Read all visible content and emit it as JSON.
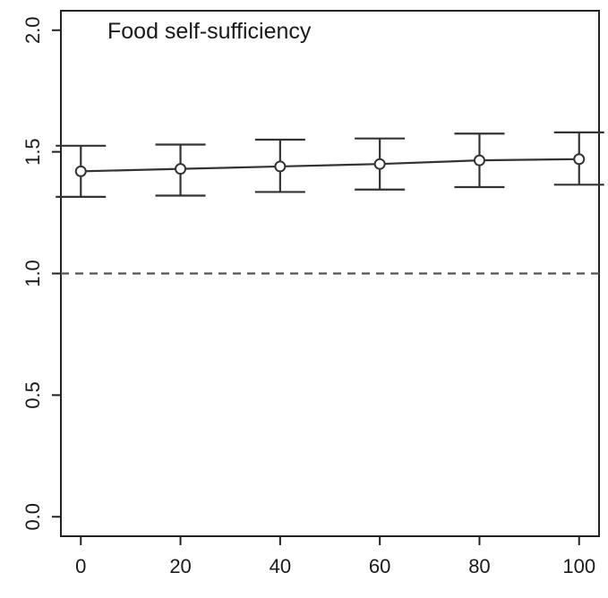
{
  "chart_data": {
    "type": "line",
    "title": "Food self-sufficiency",
    "xlabel": "",
    "ylabel": "",
    "x": [
      0,
      20,
      40,
      60,
      80,
      100
    ],
    "series": [
      {
        "values": [
          1.42,
          1.43,
          1.44,
          1.45,
          1.465,
          1.47
        ],
        "lower": [
          1.315,
          1.32,
          1.335,
          1.345,
          1.355,
          1.365
        ],
        "upper": [
          1.525,
          1.53,
          1.55,
          1.555,
          1.575,
          1.58
        ]
      }
    ],
    "reference_line": {
      "y": 1.0,
      "style": "dashed"
    },
    "xticks": [
      "0",
      "20",
      "40",
      "60",
      "80",
      "100"
    ],
    "yticks": [
      "0.0",
      "0.5",
      "1.0",
      "1.5",
      "2.0"
    ],
    "xlim": [
      -4,
      104
    ],
    "ylim": [
      -0.08,
      2.08
    ],
    "grid": false,
    "colors": {
      "line": "#333333",
      "reference": "#555555",
      "axis": "#222222"
    }
  }
}
